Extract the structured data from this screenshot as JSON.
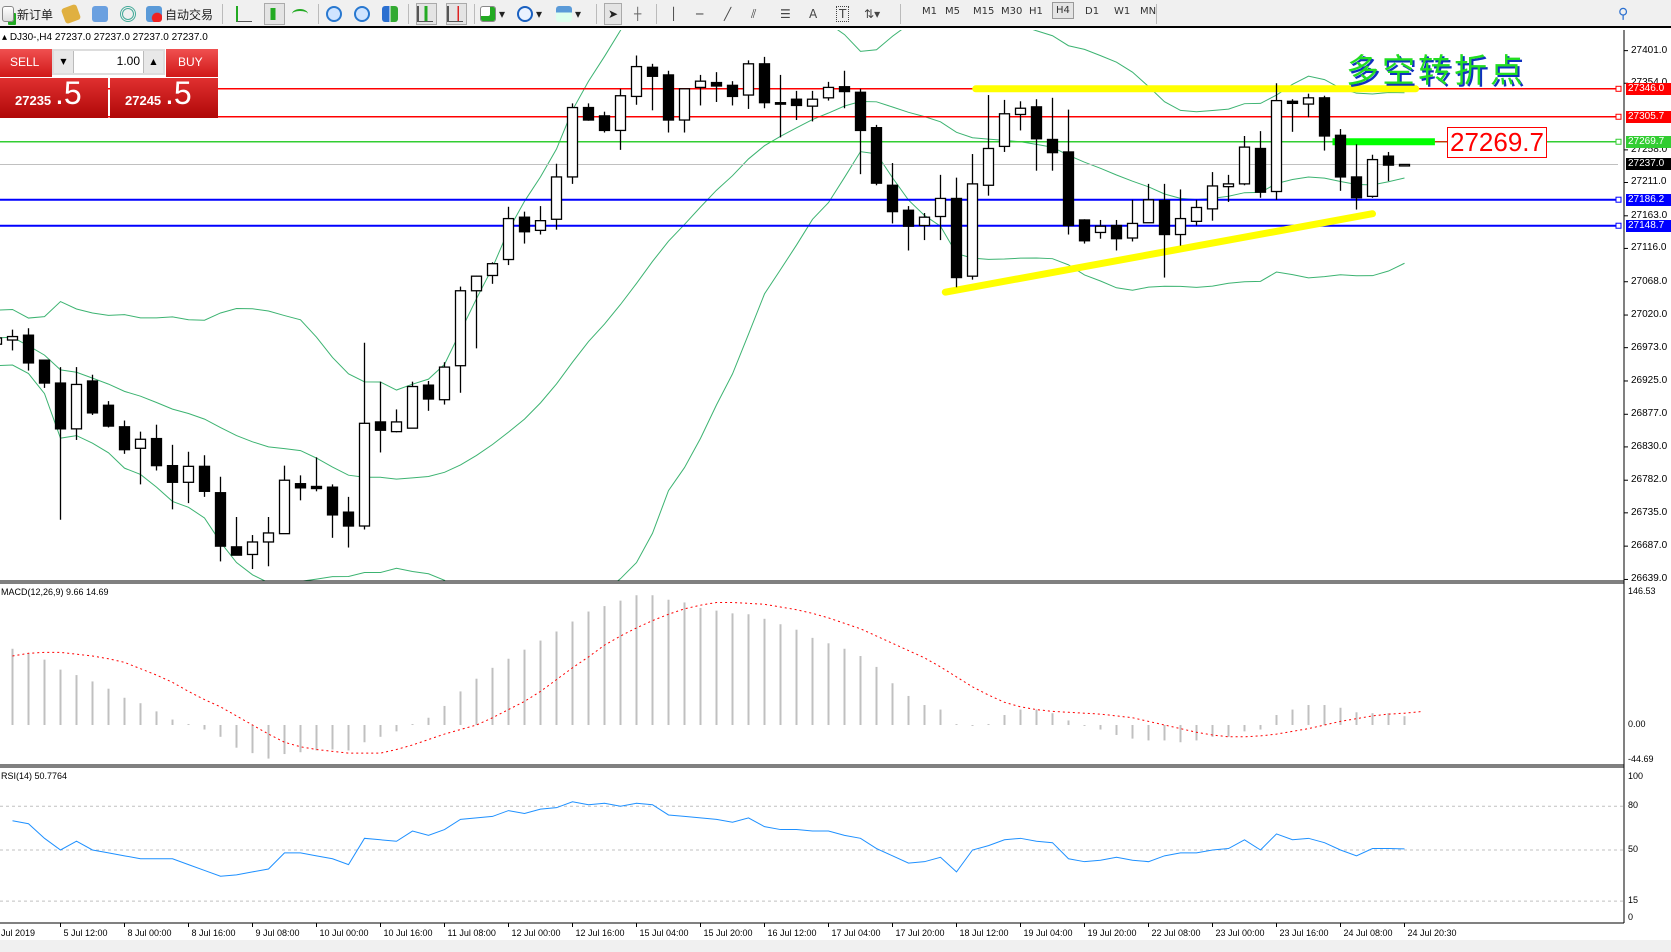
{
  "toolbar": {
    "new_order": "新订单",
    "auto_trading": "自动交易",
    "timeframes": [
      "M1",
      "M5",
      "M15",
      "M30",
      "H1",
      "H4",
      "D1",
      "W1",
      "MN"
    ],
    "active_timeframe": "H4"
  },
  "chart": {
    "symbol_info": "DJ30-,H4  27237.0 27237.0 27237.0 27237.0",
    "annotation_text": "多空转折点",
    "price_label": "27269.7",
    "price_axis": [
      "27401.0",
      "27354.0",
      "27258.0",
      "27211.0",
      "27163.0",
      "27116.0",
      "27068.0",
      "27020.0",
      "26973.0",
      "26925.0",
      "26877.0",
      "26830.0",
      "26782.0",
      "26735.0",
      "26687.0",
      "26639.0"
    ],
    "time_axis_start": "Jul 2019",
    "time_axis": [
      "5 Jul 12:00",
      "8 Jul 00:00",
      "8 Jul 16:00",
      "9 Jul 08:00",
      "10 Jul 00:00",
      "10 Jul 16:00",
      "11 Jul 08:00",
      "12 Jul 00:00",
      "12 Jul 16:00",
      "15 Jul 04:00",
      "15 Jul 20:00",
      "16 Jul 12:00",
      "17 Jul 04:00",
      "17 Jul 20:00",
      "18 Jul 12:00",
      "19 Jul 04:00",
      "19 Jul 20:00",
      "22 Jul 08:00",
      "23 Jul 00:00",
      "23 Jul 16:00",
      "24 Jul 08:00",
      "24 Jul 20:30"
    ]
  },
  "trade_panel": {
    "sell_label": "SELL",
    "buy_label": "BUY",
    "lot": "1.00",
    "sell_main": "27235",
    "sell_frac": ".5",
    "buy_main": "27245",
    "buy_frac": ".5",
    "color": "#d01818"
  },
  "macd": {
    "label": "MACD(12,26,9) 9.66 14.69",
    "axis": [
      "146.53",
      "0.00",
      "-44.69"
    ]
  },
  "rsi": {
    "label": "RSI(14) 50.7764",
    "axis": [
      "100",
      "80",
      "50",
      "15",
      "0"
    ]
  },
  "chart_data": {
    "type": "candlestick",
    "symbol": "DJ30-",
    "timeframe": "H4",
    "ylim": [
      26639,
      27401
    ],
    "ohlc": [
      [
        26978,
        26997,
        26968,
        26987
      ],
      [
        26984,
        26999,
        26969,
        26989
      ],
      [
        26991,
        27001,
        26940,
        26951
      ],
      [
        26955,
        26955,
        26915,
        26922
      ],
      [
        26922,
        26945,
        26725,
        26856
      ],
      [
        26856,
        26945,
        26840,
        26920
      ],
      [
        26925,
        26934,
        26876,
        26879
      ],
      [
        26890,
        26896,
        26858,
        26860
      ],
      [
        26859,
        26868,
        26820,
        26826
      ],
      [
        26828,
        26852,
        26776,
        26841
      ],
      [
        26842,
        26862,
        26796,
        26803
      ],
      [
        26803,
        26833,
        26740,
        26779
      ],
      [
        26779,
        26823,
        26749,
        26802
      ],
      [
        26802,
        26818,
        26758,
        26766
      ],
      [
        26764,
        26787,
        26665,
        26687
      ],
      [
        26686,
        26729,
        26674,
        26674
      ],
      [
        26675,
        26703,
        26654,
        26693
      ],
      [
        26693,
        26729,
        26658,
        26706
      ],
      [
        26705,
        26803,
        26705,
        26782
      ],
      [
        26777,
        26789,
        26753,
        26771
      ],
      [
        26773,
        26815,
        26766,
        26770
      ],
      [
        26772,
        26776,
        26699,
        26732
      ],
      [
        26736,
        26758,
        26685,
        26716
      ],
      [
        26716,
        26980,
        26711,
        26864
      ],
      [
        26866,
        26924,
        26822,
        26854
      ],
      [
        26852,
        26884,
        26851,
        26866
      ],
      [
        26857,
        26924,
        26857,
        26917
      ],
      [
        26919,
        26925,
        26882,
        26899
      ],
      [
        26898,
        26952,
        26891,
        26945
      ],
      [
        26947,
        27061,
        26908,
        27055
      ],
      [
        27055,
        27077,
        26972,
        27076
      ],
      [
        27077,
        27096,
        27065,
        27094
      ],
      [
        27100,
        27176,
        27092,
        27159
      ],
      [
        27161,
        27169,
        27123,
        27140
      ],
      [
        27142,
        27177,
        27136,
        27156
      ],
      [
        27158,
        27238,
        27143,
        27219
      ],
      [
        27219,
        27325,
        27209,
        27319
      ],
      [
        27319,
        27325,
        27300,
        27301
      ],
      [
        27307,
        27313,
        27283,
        27286
      ],
      [
        27286,
        27346,
        27258,
        27336
      ],
      [
        27335,
        27394,
        27323,
        27378
      ],
      [
        27377,
        27382,
        27315,
        27364
      ],
      [
        27366,
        27372,
        27283,
        27301
      ],
      [
        27301,
        27346,
        27283,
        27346
      ],
      [
        27348,
        27366,
        27322,
        27357
      ],
      [
        27355,
        27370,
        27327,
        27350
      ],
      [
        27351,
        27357,
        27322,
        27335
      ],
      [
        27337,
        27387,
        27317,
        27382
      ],
      [
        27382,
        27392,
        27318,
        27326
      ],
      [
        27326,
        27366,
        27276,
        27325
      ],
      [
        27331,
        27343,
        27301,
        27322
      ],
      [
        27321,
        27343,
        27299,
        27331
      ],
      [
        27333,
        27356,
        27329,
        27348
      ],
      [
        27349,
        27372,
        27318,
        27342
      ],
      [
        27341,
        27346,
        27223,
        27286
      ],
      [
        27290,
        27294,
        27207,
        27210
      ],
      [
        27207,
        27239,
        27152,
        27169
      ],
      [
        27171,
        27177,
        27113,
        27148
      ],
      [
        27149,
        27167,
        27128,
        27161
      ],
      [
        27162,
        27222,
        27128,
        27188
      ],
      [
        27188,
        27218,
        27060,
        27074
      ],
      [
        27076,
        27252,
        27071,
        27209
      ],
      [
        27207,
        27337,
        27192,
        27260
      ],
      [
        27263,
        27330,
        27255,
        27310
      ],
      [
        27309,
        27328,
        27286,
        27318
      ],
      [
        27320,
        27331,
        27228,
        27274
      ],
      [
        27273,
        27333,
        27228,
        27254
      ],
      [
        27255,
        27316,
        27136,
        27149
      ],
      [
        27157,
        27158,
        27123,
        27127
      ],
      [
        27139,
        27157,
        27130,
        27148
      ],
      [
        27149,
        27157,
        27113,
        27130
      ],
      [
        27131,
        27186,
        27126,
        27152
      ],
      [
        27153,
        27209,
        27153,
        27186
      ],
      [
        27185,
        27209,
        27074,
        27136
      ],
      [
        27136,
        27201,
        27120,
        27159
      ],
      [
        27155,
        27186,
        27149,
        27175
      ],
      [
        27173,
        27226,
        27156,
        27206
      ],
      [
        27205,
        27222,
        27183,
        27209
      ],
      [
        27209,
        27278,
        27207,
        27262
      ],
      [
        27260,
        27285,
        27189,
        27197
      ],
      [
        27198,
        27354,
        27186,
        27329
      ],
      [
        27328,
        27331,
        27284,
        27325
      ],
      [
        27324,
        27339,
        27305,
        27333
      ],
      [
        27333,
        27336,
        27257,
        27278
      ],
      [
        27279,
        27288,
        27199,
        27219
      ],
      [
        27219,
        27266,
        27172,
        27189
      ],
      [
        27191,
        27251,
        27189,
        27244
      ],
      [
        27249,
        27255,
        27213,
        27236
      ],
      [
        27237,
        27237,
        27237,
        27237
      ]
    ],
    "levels": [
      {
        "price": 27346.0,
        "label": "27346.0",
        "color": "#ff0000"
      },
      {
        "price": 27305.7,
        "label": "27305.7",
        "color": "#ff0000"
      },
      {
        "price": 27269.7,
        "label": "27269.7",
        "color": "#32cd32"
      },
      {
        "price": 27237.0,
        "label": "27237.0",
        "color": "#000000",
        "line": "#c0c0c0"
      },
      {
        "price": 27186.2,
        "label": "27186.2",
        "color": "#0000ff"
      },
      {
        "price": 27148.7,
        "label": "27148.7",
        "color": "#0000ff"
      }
    ],
    "drawings": [
      {
        "type": "yellow-resistance",
        "from": [
          60.2,
          27346
        ],
        "to": [
          87.7,
          27346
        ],
        "color": "#ffff00"
      },
      {
        "type": "yellow-trendline",
        "from": [
          58.3,
          27053
        ],
        "to": [
          85,
          27166
        ],
        "color": "#ffff00"
      },
      {
        "type": "green-pivot",
        "from": [
          82.5,
          27269.7
        ],
        "to": [
          88.9,
          27269.7
        ],
        "color": "#00ff00"
      }
    ],
    "bollinger": {
      "period": 20,
      "deviation": 2,
      "color": "#3cb371"
    },
    "macd_main": [
      84,
      79,
      72,
      61,
      55,
      48,
      40,
      30,
      24,
      15,
      6,
      1,
      -5,
      -13,
      -25,
      -31,
      -37,
      -32,
      -30,
      -28,
      -27,
      -28,
      -19,
      -13,
      -7,
      1,
      8,
      21,
      37,
      51,
      63,
      73,
      83,
      93,
      103,
      114,
      125,
      131,
      137,
      143,
      143,
      138,
      135,
      129,
      126,
      123,
      122,
      117,
      111,
      105,
      96,
      90,
      84,
      76,
      64,
      46,
      32,
      22,
      17,
      1,
      -1,
      1,
      11,
      17,
      17,
      13,
      5,
      -1,
      -5,
      -11,
      -15,
      -17,
      -17,
      -19,
      -17,
      -13,
      -13,
      -7,
      -5,
      11,
      17,
      22,
      22,
      19,
      14,
      13,
      13,
      9.66
    ],
    "macd_signal": [
      76,
      79,
      80,
      80,
      78,
      76,
      73,
      69,
      62,
      55,
      47,
      37,
      28,
      20,
      10,
      0,
      -10,
      -19,
      -24,
      -27,
      -29,
      -31,
      -31,
      -31,
      -27,
      -22,
      -16,
      -10,
      -5,
      0,
      8,
      17,
      26,
      37,
      50,
      63,
      75,
      88,
      98,
      107,
      115,
      122,
      128,
      132,
      135,
      135,
      134,
      133,
      130,
      127,
      123,
      118,
      112,
      106,
      98,
      90,
      82,
      74,
      64,
      53,
      42,
      33,
      25,
      20,
      17,
      15,
      14,
      13,
      12,
      10,
      8,
      4,
      0,
      -4,
      -8,
      -11,
      -13,
      -13,
      -12,
      -10,
      -7,
      -4,
      0,
      4,
      7,
      10,
      12,
      13,
      14.69
    ],
    "macd_ylim": [
      -44.69,
      146.53
    ],
    "rsi": [
      70,
      68,
      58,
      50,
      56,
      50,
      48,
      46,
      44,
      44,
      44,
      40,
      36,
      32,
      33,
      35,
      37,
      48,
      48,
      46,
      44,
      40,
      58,
      57,
      56,
      63,
      60,
      64,
      71,
      72,
      73,
      77,
      75,
      78,
      79,
      83,
      81,
      82,
      80,
      82,
      81,
      74,
      73,
      72,
      71,
      69,
      72,
      66,
      64,
      64,
      63,
      63,
      60,
      58,
      51,
      46,
      41,
      42,
      45,
      35,
      50,
      53,
      57,
      58,
      56,
      55,
      44,
      42,
      43,
      45,
      43,
      42,
      46,
      48,
      48,
      50,
      51,
      57,
      50,
      61,
      57,
      58,
      55,
      50,
      46,
      51,
      51,
      50.78
    ],
    "rsi_levels": [
      80,
      50,
      15
    ],
    "rsi_color": "#1e90ff",
    "macd_signal_color": "#ff0000",
    "macd_hist_color": "#c0c0c0"
  }
}
